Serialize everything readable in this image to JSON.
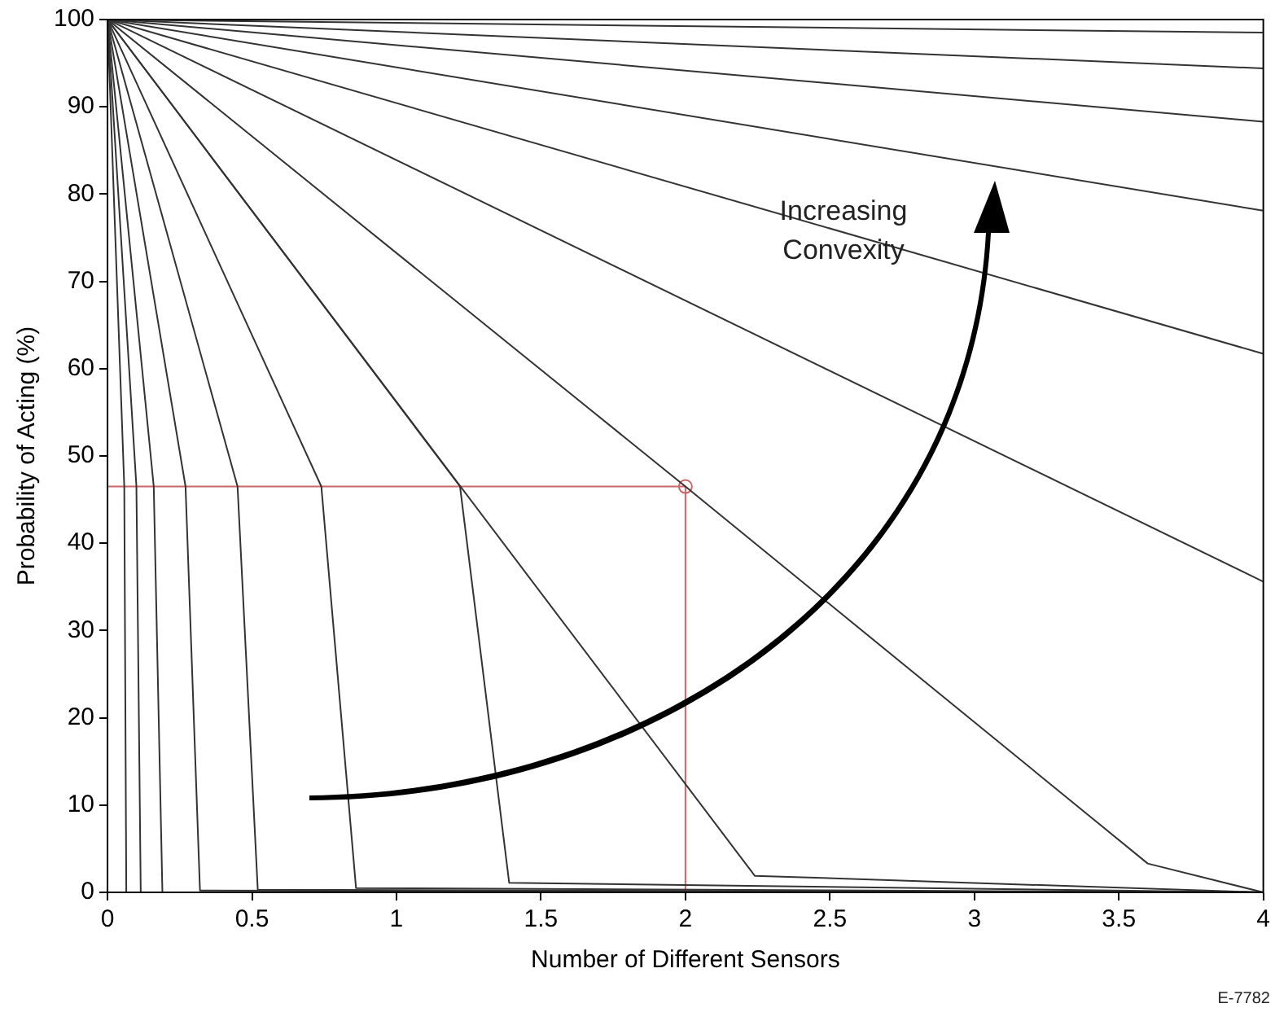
{
  "chart_data": {
    "type": "line",
    "xlabel": "Number of Different Sensors",
    "ylabel": "Probability of Acting (%)",
    "xlim": [
      0,
      4
    ],
    "xticks": [
      0,
      0.5,
      1,
      1.5,
      2,
      2.5,
      3,
      3.5,
      4
    ],
    "ylim": [
      0,
      100
    ],
    "yticks": [
      0,
      10,
      20,
      30,
      40,
      50,
      60,
      70,
      80,
      90,
      100
    ],
    "grid": false,
    "legend": false,
    "marker": "none",
    "line_style": "solid",
    "annotations": [
      "Increasing Convexity",
      "E-7782"
    ],
    "series": [
      {
        "color": "#333333",
        "x": [
          0,
          4
        ],
        "values": [
          100,
          98.5
        ]
      },
      {
        "color": "#333333",
        "x": [
          0,
          4
        ],
        "values": [
          100,
          94.4
        ]
      },
      {
        "color": "#333333",
        "x": [
          0,
          4
        ],
        "values": [
          100,
          88.3
        ]
      },
      {
        "color": "#333333",
        "x": [
          0,
          4
        ],
        "values": [
          100,
          78.1
        ]
      },
      {
        "color": "#333333",
        "x": [
          0,
          4
        ],
        "values": [
          100,
          61.7
        ]
      },
      {
        "color": "#333333",
        "x": [
          0,
          4
        ],
        "values": [
          100,
          35.6
        ]
      },
      {
        "color": "#333333",
        "x": [
          0,
          2,
          3.6,
          4
        ],
        "values": [
          100,
          46.5,
          3.3,
          0
        ]
      },
      {
        "color": "#333333",
        "x": [
          0,
          2.24,
          4
        ],
        "values": [
          100,
          1.9,
          0
        ]
      },
      {
        "color": "#333333",
        "x": [
          0,
          1.22,
          1.39,
          4
        ],
        "values": [
          100,
          46.5,
          1.1,
          0
        ]
      },
      {
        "color": "#333333",
        "x": [
          0,
          0.74,
          0.86,
          4
        ],
        "values": [
          100,
          46.5,
          0.5,
          0
        ]
      },
      {
        "color": "#333333",
        "x": [
          0,
          0.45,
          0.52,
          4
        ],
        "values": [
          100,
          46.5,
          0.3,
          0
        ]
      },
      {
        "color": "#333333",
        "x": [
          0,
          0.27,
          0.32,
          4
        ],
        "values": [
          100,
          46.5,
          0.2,
          0
        ]
      },
      {
        "color": "#333333",
        "x": [
          0,
          0.16,
          0.19,
          4
        ],
        "values": [
          100,
          46.5,
          0,
          0
        ]
      },
      {
        "color": "#333333",
        "x": [
          0,
          0.1,
          0.115,
          4
        ],
        "values": [
          100,
          46.5,
          0,
          0
        ]
      },
      {
        "color": "#333333",
        "x": [
          0,
          0.058,
          0.065,
          4
        ],
        "values": [
          100,
          46.5,
          0,
          0
        ]
      },
      {
        "color": "#cc6666",
        "x": [
          0,
          2,
          2
        ],
        "values": [
          46.5,
          46.5,
          0
        ]
      },
      {
        "type": "scatter",
        "marker": "circle",
        "color": "#cc6666",
        "x": [
          2
        ],
        "values": [
          46.5
        ]
      }
    ]
  }
}
